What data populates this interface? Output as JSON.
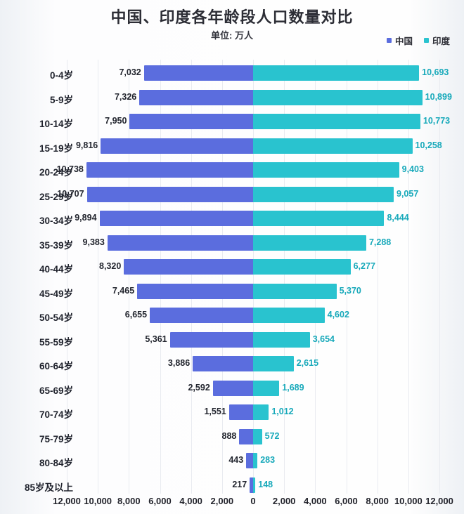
{
  "title": "中国、印度各年龄段人口数量对比",
  "subtitle": "单位: 万人",
  "legend": {
    "china": "中国",
    "india": "印度"
  },
  "colors": {
    "china_bar": "#5b6dde",
    "india_bar": "#29c3cf",
    "china_value_label": "#22252e",
    "india_value_label": "#17a9ba",
    "title_text": "#2c2d35",
    "gridline": "#e9ebf0"
  },
  "chart_data": {
    "type": "bar",
    "orientation": "horizontal-diverging",
    "title": "中国、印度各年龄段人口数量对比",
    "subtitle": "单位: 万人",
    "unit": "万人",
    "grid": true,
    "legend_position": "top-right",
    "axis_max": 12000,
    "x_ticks": [
      "12,000",
      "10,000",
      "8,000",
      "6,000",
      "4,000",
      "2,000",
      "0",
      "2,000",
      "4,000",
      "6,000",
      "8,000",
      "10,000",
      "12,000"
    ],
    "categories": [
      "0-4岁",
      "5-9岁",
      "10-14岁",
      "15-19岁",
      "20-24岁",
      "25-29岁",
      "30-34岁",
      "35-39岁",
      "40-44岁",
      "45-49岁",
      "50-54岁",
      "55-59岁",
      "60-64岁",
      "65-69岁",
      "70-74岁",
      "75-79岁",
      "80-84岁",
      "85岁及以上"
    ],
    "series": [
      {
        "name": "中国",
        "side": "left",
        "values": [
          7032,
          7326,
          7950,
          9816,
          10738,
          10707,
          9894,
          9383,
          8320,
          7465,
          6655,
          5361,
          3886,
          2592,
          1551,
          888,
          443,
          217
        ]
      },
      {
        "name": "印度",
        "side": "right",
        "values": [
          10693,
          10899,
          10773,
          10258,
          9403,
          9057,
          8444,
          7288,
          6277,
          5370,
          4602,
          3654,
          2615,
          1689,
          1012,
          572,
          283,
          148
        ]
      }
    ]
  }
}
